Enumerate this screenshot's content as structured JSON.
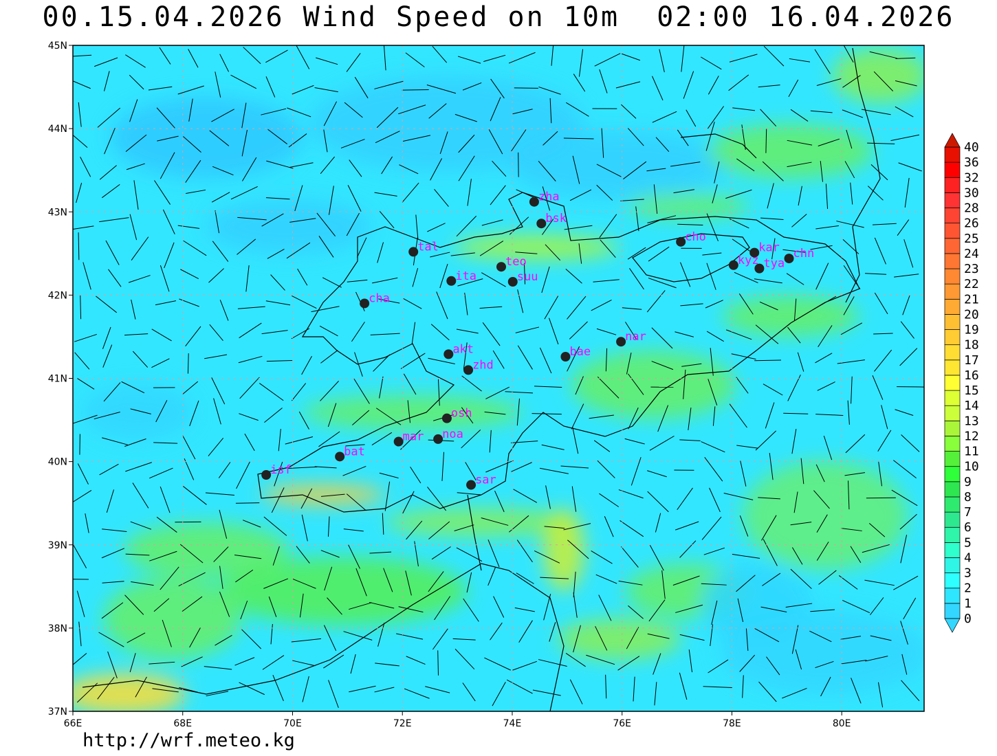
{
  "title": "00.15.04.2026 Wind Speed on 10m  02:00 16.04.2026",
  "footer_url": "http://wrf.meteo.kg",
  "map": {
    "lon_range": [
      66,
      81.5
    ],
    "lat_range": [
      37,
      45
    ],
    "lon_ticks": [
      "66E",
      "68E",
      "70E",
      "72E",
      "74E",
      "76E",
      "78E",
      "80E"
    ],
    "lat_ticks": [
      "37N",
      "38N",
      "39N",
      "40N",
      "41N",
      "42N",
      "43N",
      "44N",
      "45N"
    ],
    "station_color": "#ff00ff",
    "stations": [
      {
        "id": "zha",
        "lon": 74.4,
        "lat": 43.12
      },
      {
        "id": "bsk",
        "lon": 74.53,
        "lat": 42.86
      },
      {
        "id": "tal",
        "lon": 72.2,
        "lat": 42.52
      },
      {
        "id": "teo",
        "lon": 73.8,
        "lat": 42.34
      },
      {
        "id": "ita",
        "lon": 72.89,
        "lat": 42.17
      },
      {
        "id": "suu",
        "lon": 74.01,
        "lat": 42.16
      },
      {
        "id": "cha",
        "lon": 71.31,
        "lat": 41.9
      },
      {
        "id": "cho",
        "lon": 77.07,
        "lat": 42.64
      },
      {
        "id": "kar",
        "lon": 78.41,
        "lat": 42.51
      },
      {
        "id": "kyz",
        "lon": 78.03,
        "lat": 42.36
      },
      {
        "id": "tya",
        "lon": 78.5,
        "lat": 42.32
      },
      {
        "id": "chn",
        "lon": 79.04,
        "lat": 42.44
      },
      {
        "id": "nar",
        "lon": 75.98,
        "lat": 41.44
      },
      {
        "id": "bae",
        "lon": 74.97,
        "lat": 41.26
      },
      {
        "id": "akt",
        "lon": 72.84,
        "lat": 41.29
      },
      {
        "id": "zhd",
        "lon": 73.2,
        "lat": 41.1
      },
      {
        "id": "osh",
        "lon": 72.81,
        "lat": 40.52
      },
      {
        "id": "noa",
        "lon": 72.65,
        "lat": 40.27
      },
      {
        "id": "mar",
        "lon": 71.93,
        "lat": 40.24
      },
      {
        "id": "bat",
        "lon": 70.86,
        "lat": 40.06
      },
      {
        "id": "isf",
        "lon": 69.52,
        "lat": 39.84
      },
      {
        "id": "sar",
        "lon": 73.25,
        "lat": 39.72
      }
    ]
  },
  "colorbar": {
    "labels": [
      "0",
      "1",
      "2",
      "3",
      "4",
      "5",
      "6",
      "7",
      "8",
      "9",
      "10",
      "11",
      "12",
      "13",
      "14",
      "15",
      "16",
      "17",
      "18",
      "19",
      "20",
      "21",
      "22",
      "23",
      "24",
      "25",
      "26",
      "28",
      "30",
      "32",
      "36",
      "40"
    ],
    "colors": [
      "#33d6ff",
      "#2ee6ff",
      "#2effff",
      "#2ef5e6",
      "#2effcc",
      "#2ef5aa",
      "#2ee890",
      "#2eeb70",
      "#2ee650",
      "#2eff3a",
      "#55f03a",
      "#88ff3a",
      "#aaf53a",
      "#ccff3a",
      "#ddff33",
      "#ffff33",
      "#ffe633",
      "#ffdd33",
      "#ffcc33",
      "#ffbf33",
      "#ffaa33",
      "#ff9933",
      "#ff8833",
      "#ff7733",
      "#ff6633",
      "#ff5533",
      "#ff4433",
      "#ff3333",
      "#ff2222",
      "#ff0000",
      "#e81000",
      "#cc1a00"
    ]
  }
}
